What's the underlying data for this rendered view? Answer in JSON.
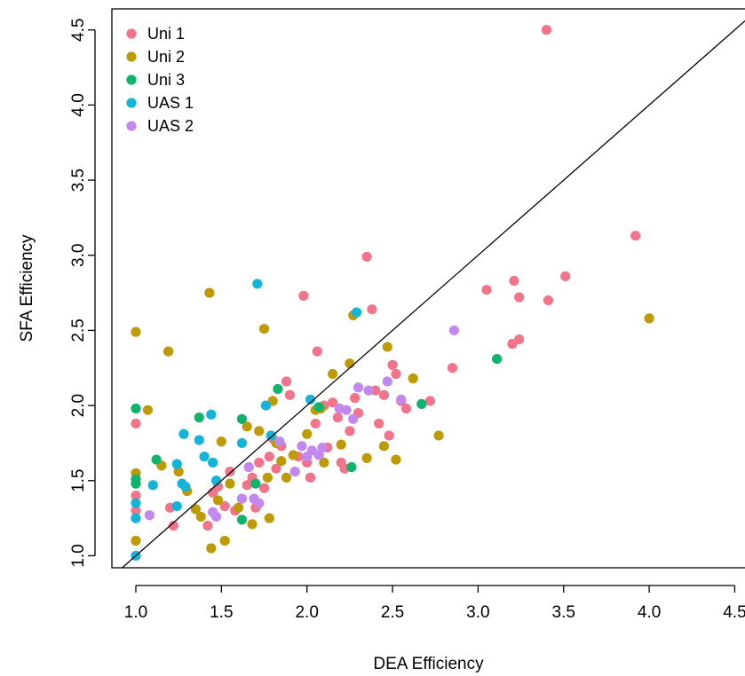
{
  "chart_data": {
    "type": "scatter",
    "title": "",
    "xlabel": "DEA Efficiency",
    "ylabel": "SFA Efficiency",
    "xlim": [
      0.86,
      4.56
    ],
    "ylim": [
      0.92,
      4.64
    ],
    "xticks": [
      "1.0",
      "1.5",
      "2.0",
      "2.5",
      "3.0",
      "3.5",
      "4.0",
      "4.5"
    ],
    "yticks": [
      "1.0",
      "1.5",
      "2.0",
      "2.5",
      "3.0",
      "3.5",
      "4.0",
      "4.5"
    ],
    "grid": false,
    "legend_position": "top-left",
    "reference_line": "y = x",
    "series": [
      {
        "name": "Uni 1",
        "color": "#F2748A",
        "points": [
          [
            1.0,
            1.88
          ],
          [
            1.0,
            1.4
          ],
          [
            1.0,
            1.3
          ],
          [
            1.2,
            1.32
          ],
          [
            1.22,
            1.2
          ],
          [
            1.42,
            1.2
          ],
          [
            1.45,
            1.42
          ],
          [
            1.48,
            1.46
          ],
          [
            1.52,
            1.33
          ],
          [
            1.55,
            1.56
          ],
          [
            1.58,
            1.3
          ],
          [
            1.62,
            1.38
          ],
          [
            1.65,
            1.47
          ],
          [
            1.68,
            1.52
          ],
          [
            1.7,
            1.32
          ],
          [
            1.72,
            1.62
          ],
          [
            1.75,
            1.45
          ],
          [
            1.78,
            1.66
          ],
          [
            1.8,
            1.78
          ],
          [
            1.82,
            1.58
          ],
          [
            1.85,
            1.73
          ],
          [
            1.88,
            2.16
          ],
          [
            1.9,
            2.07
          ],
          [
            1.95,
            1.66
          ],
          [
            1.98,
            2.73
          ],
          [
            2.0,
            1.62
          ],
          [
            2.02,
            1.52
          ],
          [
            2.05,
            1.88
          ],
          [
            2.06,
            2.36
          ],
          [
            2.1,
            2.0
          ],
          [
            2.12,
            1.72
          ],
          [
            2.15,
            2.02
          ],
          [
            2.18,
            1.92
          ],
          [
            2.2,
            1.62
          ],
          [
            2.22,
            1.58
          ],
          [
            2.25,
            1.83
          ],
          [
            2.28,
            2.05
          ],
          [
            2.3,
            1.95
          ],
          [
            2.35,
            2.99
          ],
          [
            2.38,
            2.64
          ],
          [
            2.4,
            2.1
          ],
          [
            2.42,
            1.88
          ],
          [
            2.45,
            2.07
          ],
          [
            2.48,
            1.8
          ],
          [
            2.5,
            2.27
          ],
          [
            2.52,
            2.21
          ],
          [
            2.55,
            2.03
          ],
          [
            2.58,
            1.98
          ],
          [
            2.72,
            2.03
          ],
          [
            2.85,
            2.25
          ],
          [
            3.05,
            2.77
          ],
          [
            3.2,
            2.41
          ],
          [
            3.21,
            2.83
          ],
          [
            3.24,
            2.44
          ],
          [
            3.24,
            2.72
          ],
          [
            3.4,
            4.5
          ],
          [
            3.41,
            2.7
          ],
          [
            3.51,
            2.86
          ],
          [
            3.92,
            3.13
          ]
        ]
      },
      {
        "name": "Uni 2",
        "color": "#BF9A07",
        "points": [
          [
            1.0,
            2.49
          ],
          [
            1.0,
            1.55
          ],
          [
            1.0,
            1.1
          ],
          [
            1.07,
            1.97
          ],
          [
            1.15,
            1.6
          ],
          [
            1.19,
            2.36
          ],
          [
            1.25,
            1.56
          ],
          [
            1.3,
            1.43
          ],
          [
            1.35,
            1.31
          ],
          [
            1.38,
            1.26
          ],
          [
            1.43,
            2.75
          ],
          [
            1.44,
            1.05
          ],
          [
            1.48,
            1.37
          ],
          [
            1.5,
            1.76
          ],
          [
            1.52,
            1.1
          ],
          [
            1.55,
            1.48
          ],
          [
            1.6,
            1.32
          ],
          [
            1.65,
            1.86
          ],
          [
            1.68,
            1.21
          ],
          [
            1.72,
            1.83
          ],
          [
            1.75,
            2.51
          ],
          [
            1.77,
            1.52
          ],
          [
            1.78,
            1.25
          ],
          [
            1.8,
            2.03
          ],
          [
            1.82,
            1.75
          ],
          [
            1.85,
            1.63
          ],
          [
            1.88,
            1.52
          ],
          [
            1.92,
            1.67
          ],
          [
            2.0,
            1.81
          ],
          [
            2.05,
            1.97
          ],
          [
            2.08,
            1.98
          ],
          [
            2.1,
            1.62
          ],
          [
            2.15,
            2.21
          ],
          [
            2.2,
            1.74
          ],
          [
            2.25,
            2.28
          ],
          [
            2.27,
            2.6
          ],
          [
            2.35,
            1.65
          ],
          [
            2.45,
            1.73
          ],
          [
            2.47,
            2.39
          ],
          [
            2.52,
            1.64
          ],
          [
            2.62,
            2.18
          ],
          [
            2.77,
            1.8
          ],
          [
            4.0,
            2.58
          ]
        ]
      },
      {
        "name": "Uni 3",
        "color": "#10B36A",
        "points": [
          [
            1.0,
            1.98
          ],
          [
            1.0,
            1.51
          ],
          [
            1.0,
            1.48
          ],
          [
            1.12,
            1.64
          ],
          [
            1.37,
            1.92
          ],
          [
            1.62,
            1.91
          ],
          [
            1.62,
            1.24
          ],
          [
            1.7,
            1.48
          ],
          [
            1.83,
            2.11
          ],
          [
            2.07,
            1.99
          ],
          [
            2.26,
            1.59
          ],
          [
            2.67,
            2.01
          ],
          [
            3.11,
            2.31
          ]
        ]
      },
      {
        "name": "UAS 1",
        "color": "#14B4D9",
        "points": [
          [
            1.0,
            1.35
          ],
          [
            1.0,
            1.25
          ],
          [
            1.0,
            1.0
          ],
          [
            1.1,
            1.47
          ],
          [
            1.24,
            1.61
          ],
          [
            1.24,
            1.33
          ],
          [
            1.27,
            1.48
          ],
          [
            1.28,
            1.81
          ],
          [
            1.29,
            1.46
          ],
          [
            1.37,
            1.77
          ],
          [
            1.4,
            1.66
          ],
          [
            1.44,
            1.94
          ],
          [
            1.45,
            1.62
          ],
          [
            1.47,
            1.5
          ],
          [
            1.62,
            1.75
          ],
          [
            1.71,
            2.81
          ],
          [
            1.76,
            2.0
          ],
          [
            1.79,
            1.8
          ],
          [
            2.02,
            2.04
          ],
          [
            2.29,
            2.62
          ]
        ]
      },
      {
        "name": "UAS 2",
        "color": "#C288F0",
        "points": [
          [
            1.08,
            1.27
          ],
          [
            1.45,
            1.29
          ],
          [
            1.47,
            1.26
          ],
          [
            1.62,
            1.38
          ],
          [
            1.66,
            1.59
          ],
          [
            1.69,
            1.38
          ],
          [
            1.72,
            1.35
          ],
          [
            1.84,
            1.76
          ],
          [
            1.93,
            1.56
          ],
          [
            1.97,
            1.73
          ],
          [
            2.0,
            1.66
          ],
          [
            2.03,
            1.7
          ],
          [
            2.07,
            1.67
          ],
          [
            2.09,
            1.72
          ],
          [
            2.19,
            1.98
          ],
          [
            2.23,
            1.97
          ],
          [
            2.27,
            1.91
          ],
          [
            2.3,
            2.12
          ],
          [
            2.36,
            2.1
          ],
          [
            2.47,
            2.16
          ],
          [
            2.55,
            2.04
          ],
          [
            2.86,
            2.5
          ]
        ]
      }
    ]
  }
}
